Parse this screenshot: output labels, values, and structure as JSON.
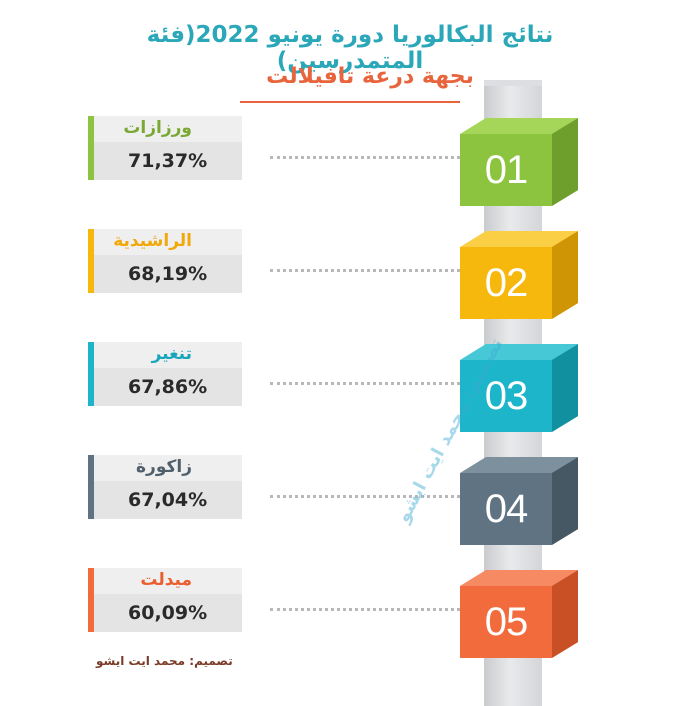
{
  "header": {
    "title": "نتائج البكالوريا دورة يونيو 2022(فئة المتمدرسين)",
    "subtitle": "بجهة درعة تافيلالت"
  },
  "colors": {
    "title": "#2aa7b8",
    "subtitle": "#e8643c",
    "column": "#d3d5d8"
  },
  "chart_data": {
    "type": "bar",
    "title": "نتائج البكالوريا دورة يونيو 2022(فئة المتمدرسين)",
    "subtitle": "بجهة درعة تافيلالت",
    "unit": "%",
    "categories": [
      "ورزازات",
      "الراشيدية",
      "تنغير",
      "زاكورة",
      "ميدلت"
    ],
    "values": [
      71.37,
      68.19,
      67.86,
      67.04,
      60.09
    ],
    "items": [
      {
        "rank": "01",
        "name": "ورزازات",
        "value_label": "71,37%",
        "value": 71.37,
        "color": "#8cc43f",
        "shade": "#6e9e2c",
        "cap": "#a6d659",
        "text_color": "#7aa835"
      },
      {
        "rank": "02",
        "name": "الراشيدية",
        "value_label": "68,19%",
        "value": 68.19,
        "color": "#f6b80d",
        "shade": "#cf9505",
        "cap": "#fbcf45",
        "text_color": "#f0a80a"
      },
      {
        "rank": "03",
        "name": "تنغير",
        "value_label": "67,86%",
        "value": 67.86,
        "color": "#1cb5c9",
        "shade": "#11909f",
        "cap": "#47c8d7",
        "text_color": "#18a7ba"
      },
      {
        "rank": "04",
        "name": "زاكورة",
        "value_label": "67,04%",
        "value": 67.04,
        "color": "#5f7382",
        "shade": "#475865",
        "cap": "#7d909d",
        "text_color": "#4f5f6b"
      },
      {
        "rank": "05",
        "name": "ميدلت",
        "value_label": "60,09%",
        "value": 60.09,
        "color": "#f26b3c",
        "shade": "#c94f24",
        "cap": "#f68a63",
        "text_color": "#ea5e30"
      }
    ]
  },
  "footer": {
    "credit": "تصميم: محمد ايت ايشو",
    "watermark": "تصميم: محمد ايت ايشو"
  }
}
